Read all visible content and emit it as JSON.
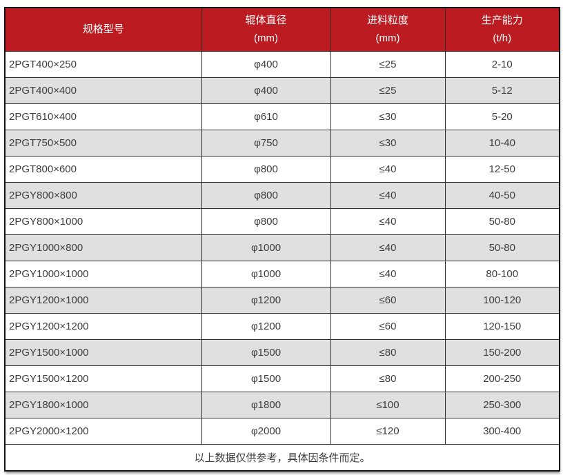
{
  "chart_data": {
    "type": "table",
    "columns": [
      {
        "label": "规格型号",
        "unit": ""
      },
      {
        "label": "辊体直径",
        "unit": "(mm)"
      },
      {
        "label": "进料粒度",
        "unit": "(mm)"
      },
      {
        "label": "生产能力",
        "unit": "(t/h)"
      }
    ],
    "rows": [
      [
        "2PGT400×250",
        "φ400",
        "≤25",
        "2-10"
      ],
      [
        "2PGT400×400",
        "φ400",
        "≤25",
        "5-12"
      ],
      [
        "2PGT610×400",
        "φ610",
        "≤30",
        "5-20"
      ],
      [
        "2PGT750×500",
        "φ750",
        "≤30",
        "10-40"
      ],
      [
        "2PGT800×600",
        "φ800",
        "≤40",
        "12-50"
      ],
      [
        "2PGY800×800",
        "φ800",
        "≤40",
        "40-50"
      ],
      [
        "2PGY800×1000",
        "φ800",
        "≤40",
        "50-80"
      ],
      [
        "2PGY1000×800",
        "φ1000",
        "≤40",
        "50-80"
      ],
      [
        "2PGY1000×1000",
        "φ1000",
        "≤40",
        "80-100"
      ],
      [
        "2PGY1200×1000",
        "φ1200",
        "≤60",
        "100-120"
      ],
      [
        "2PGY1200×1200",
        "φ1200",
        "≤60",
        "120-150"
      ],
      [
        "2PGY1500×1000",
        "φ1500",
        "≤80",
        "150-200"
      ],
      [
        "2PGY1500×1200",
        "φ1500",
        "≤80",
        "200-250"
      ],
      [
        "2PGY1800×1000",
        "φ1800",
        "≤100",
        "250-300"
      ],
      [
        "2PGY2000×1200",
        "φ2000",
        "≤120",
        "300-400"
      ]
    ],
    "footer_note": "以上数据仅供参考，具体因条件而定。"
  },
  "colors": {
    "header_bg": "#BC1B21",
    "header_text": "#FFFFFF",
    "row_odd_bg": "#FFFFFF",
    "row_even_bg": "#E0E0E0",
    "grid_border": "#2E2E2E",
    "outer_border": "#141414",
    "cell_text": "#3D3D3D"
  }
}
